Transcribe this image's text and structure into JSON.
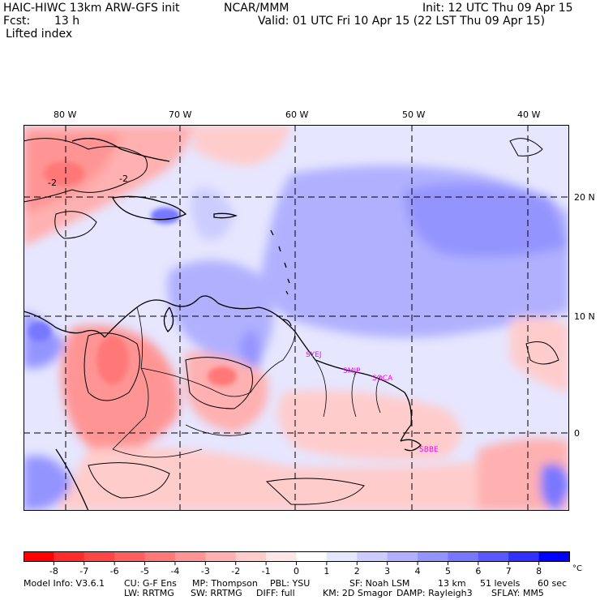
{
  "header": {
    "model": "HAIC-HIWC 13km ARW-GFS init",
    "org": "NCAR/MMM",
    "init": "Init: 12 UTC Thu 09 Apr 15",
    "fcst_label": "Fcst:",
    "fcst_value": "13 h",
    "valid": "Valid: 01 UTC Fri 10 Apr 15 (22 LST Thu 09 Apr 15)",
    "field": "Lifted index"
  },
  "map": {
    "lon_labels": [
      "80 W",
      "70 W",
      "60 W",
      "50 W",
      "40 W"
    ],
    "lat_labels": [
      "20 N",
      "10 N",
      "0"
    ],
    "contour_labels": [
      "-2",
      "-2"
    ],
    "stations": [
      "SYEJ",
      "SMJP",
      "SOCA",
      "SBBE"
    ],
    "colors": {
      "land_line": "#000000",
      "station": "#ff00ff",
      "grid": "#000000"
    }
  },
  "colorbar": {
    "ticks": [
      "-8",
      "-7",
      "-6",
      "-5",
      "-4",
      "-3",
      "-2",
      "-1",
      "0",
      "1",
      "2",
      "3",
      "4",
      "5",
      "6",
      "7",
      "8"
    ],
    "unit": "°C",
    "colors": [
      "#ff0000",
      "#ff2a2a",
      "#ff4646",
      "#ff5f5f",
      "#ff7878",
      "#ff9494",
      "#ffb0b0",
      "#ffcccc",
      "#ffe6e6",
      "#ffffff",
      "#e6e6ff",
      "#ccccff",
      "#b0b0ff",
      "#9494ff",
      "#7878ff",
      "#5858ff",
      "#3030ff",
      "#0000ff"
    ]
  },
  "footer": {
    "line1": [
      "Model Info: V3.6.1",
      "CU: G-F Ens",
      "MP: Thompson",
      "PBL: YSU",
      "SF: Noah LSM",
      "13 km",
      "51 levels",
      "60 sec"
    ],
    "line2": [
      "LW: RRTMG",
      "SW: RRTMG",
      "DIFF: full",
      "KM: 2D Smagor",
      "DAMP: Rayleigh3",
      "SFLAY: MM5"
    ]
  }
}
